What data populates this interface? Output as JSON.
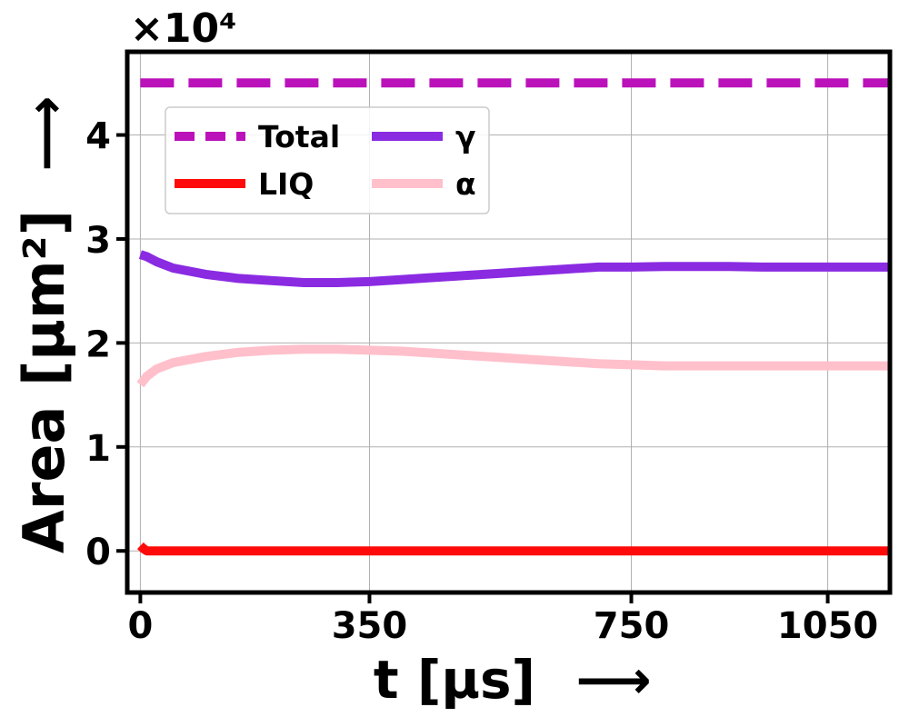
{
  "chart_data": {
    "type": "line",
    "xlabel": "t [µs]",
    "xlabel_arrow": "⟶",
    "ylabel": "Area [µm²]",
    "ylabel_arrow": "⟶",
    "y_multiplier": "×10⁴",
    "xlim": [
      -20,
      1145
    ],
    "ylim": [
      -4000,
      48000
    ],
    "xticks": [
      0,
      350,
      750,
      1050
    ],
    "xtick_labels": [
      "0",
      "350",
      "750",
      "1050"
    ],
    "yticks": [
      0,
      10000,
      20000,
      30000,
      40000
    ],
    "ytick_labels": [
      "0",
      "1",
      "2",
      "3",
      "4"
    ],
    "grid": true,
    "legend_position": "upper-left",
    "legend_columns": 2,
    "series": [
      {
        "name": "Total",
        "color": "#bb11bb",
        "style": "dashed",
        "x": [
          0,
          1145
        ],
        "y": [
          45000,
          45000
        ]
      },
      {
        "name": "LIQ",
        "color": "#ff0a0a",
        "style": "solid",
        "x": [
          0,
          5,
          10,
          20,
          40,
          100,
          400,
          750,
          1145
        ],
        "y": [
          500,
          200,
          0,
          0,
          0,
          0,
          0,
          0,
          0
        ]
      },
      {
        "name": "γ",
        "color": "#8a2be2",
        "style": "solid",
        "x": [
          0,
          10,
          25,
          50,
          100,
          150,
          200,
          250,
          300,
          350,
          400,
          450,
          500,
          550,
          600,
          650,
          700,
          750,
          800,
          850,
          900,
          950,
          1000,
          1050,
          1100,
          1145
        ],
        "y": [
          28500,
          28300,
          27800,
          27200,
          26600,
          26200,
          26000,
          25800,
          25800,
          25900,
          26100,
          26300,
          26500,
          26700,
          26900,
          27100,
          27300,
          27300,
          27350,
          27350,
          27350,
          27300,
          27300,
          27300,
          27300,
          27300
        ]
      },
      {
        "name": "α",
        "color": "#ffc0cb",
        "style": "solid",
        "x": [
          0,
          10,
          25,
          50,
          100,
          150,
          200,
          250,
          300,
          350,
          400,
          450,
          500,
          550,
          600,
          650,
          700,
          750,
          800,
          850,
          900,
          950,
          1000,
          1050,
          1100,
          1145
        ],
        "y": [
          16000,
          16800,
          17500,
          18100,
          18700,
          19100,
          19300,
          19400,
          19400,
          19300,
          19200,
          19000,
          18800,
          18600,
          18400,
          18200,
          18000,
          17900,
          17800,
          17800,
          17800,
          17800,
          17800,
          17800,
          17800,
          17800
        ]
      }
    ]
  }
}
